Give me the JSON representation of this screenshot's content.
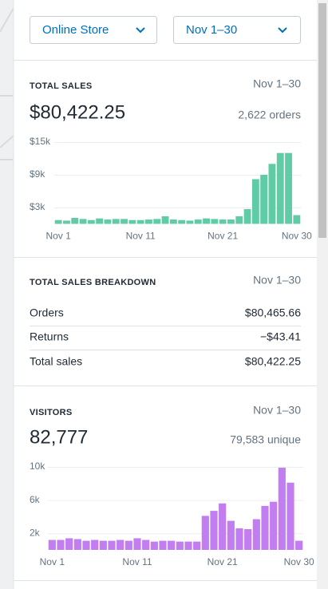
{
  "filters": [
    "Online Store",
    "Nov 1–30"
  ],
  "total_sales": {
    "title": "TOTAL SALES",
    "period": "Nov 1–30",
    "amount": "$80,422.25",
    "count": "2,622 orders"
  },
  "breakdown": {
    "title": "TOTAL SALES BREAKDOWN",
    "period": "Nov 1–30",
    "rows": [
      [
        "Orders",
        "$80,465.66"
      ],
      [
        "Returns",
        "−$43.41"
      ],
      [
        "Total sales",
        "$80,422.25"
      ]
    ]
  },
  "visitors": {
    "title": "VISITORS",
    "period": "Nov 1–30",
    "amount": "82,777",
    "count": "79,583 unique"
  },
  "chart_data": [
    {
      "type": "bar",
      "color": "#5fcca5",
      "categories": [
        "Nov 1",
        null,
        null,
        null,
        null,
        null,
        null,
        null,
        null,
        null,
        "Nov 11",
        null,
        null,
        null,
        null,
        null,
        null,
        null,
        null,
        null,
        "Nov 21",
        null,
        null,
        null,
        null,
        null,
        null,
        null,
        null,
        "Nov 30"
      ],
      "values": [
        700,
        600,
        1100,
        900,
        700,
        1000,
        800,
        900,
        900,
        700,
        700,
        800,
        900,
        1400,
        800,
        700,
        600,
        800,
        1000,
        900,
        800,
        800,
        1400,
        2700,
        8200,
        9000,
        11000,
        13000,
        13000,
        1600
      ],
      "ylim": [
        0,
        15000
      ],
      "yticks": [
        {
          "value": 3000,
          "label": "$3k"
        },
        {
          "value": 9000,
          "label": "$9k"
        },
        {
          "value": 15000,
          "label": "$15k"
        }
      ],
      "grid": true
    },
    {
      "type": "bar",
      "color": "#c27ef0",
      "categories": [
        "Nov 1",
        null,
        null,
        null,
        null,
        null,
        null,
        null,
        null,
        null,
        "Nov 11",
        null,
        null,
        null,
        null,
        null,
        null,
        null,
        null,
        null,
        "Nov 21",
        null,
        null,
        null,
        null,
        null,
        null,
        null,
        null,
        "Nov 30"
      ],
      "values": [
        1200,
        1200,
        1400,
        1300,
        1100,
        1200,
        1100,
        1100,
        1200,
        1100,
        1400,
        1200,
        1000,
        1100,
        1100,
        1000,
        1000,
        1000,
        4100,
        4700,
        5600,
        3500,
        2600,
        2500,
        3700,
        5300,
        5800,
        9900,
        8100,
        1100
      ],
      "ylim": [
        0,
        10000
      ],
      "yticks": [
        {
          "value": 2000,
          "label": "2k"
        },
        {
          "value": 6000,
          "label": "6k"
        },
        {
          "value": 10000,
          "label": "10k"
        }
      ],
      "grid": true
    }
  ]
}
